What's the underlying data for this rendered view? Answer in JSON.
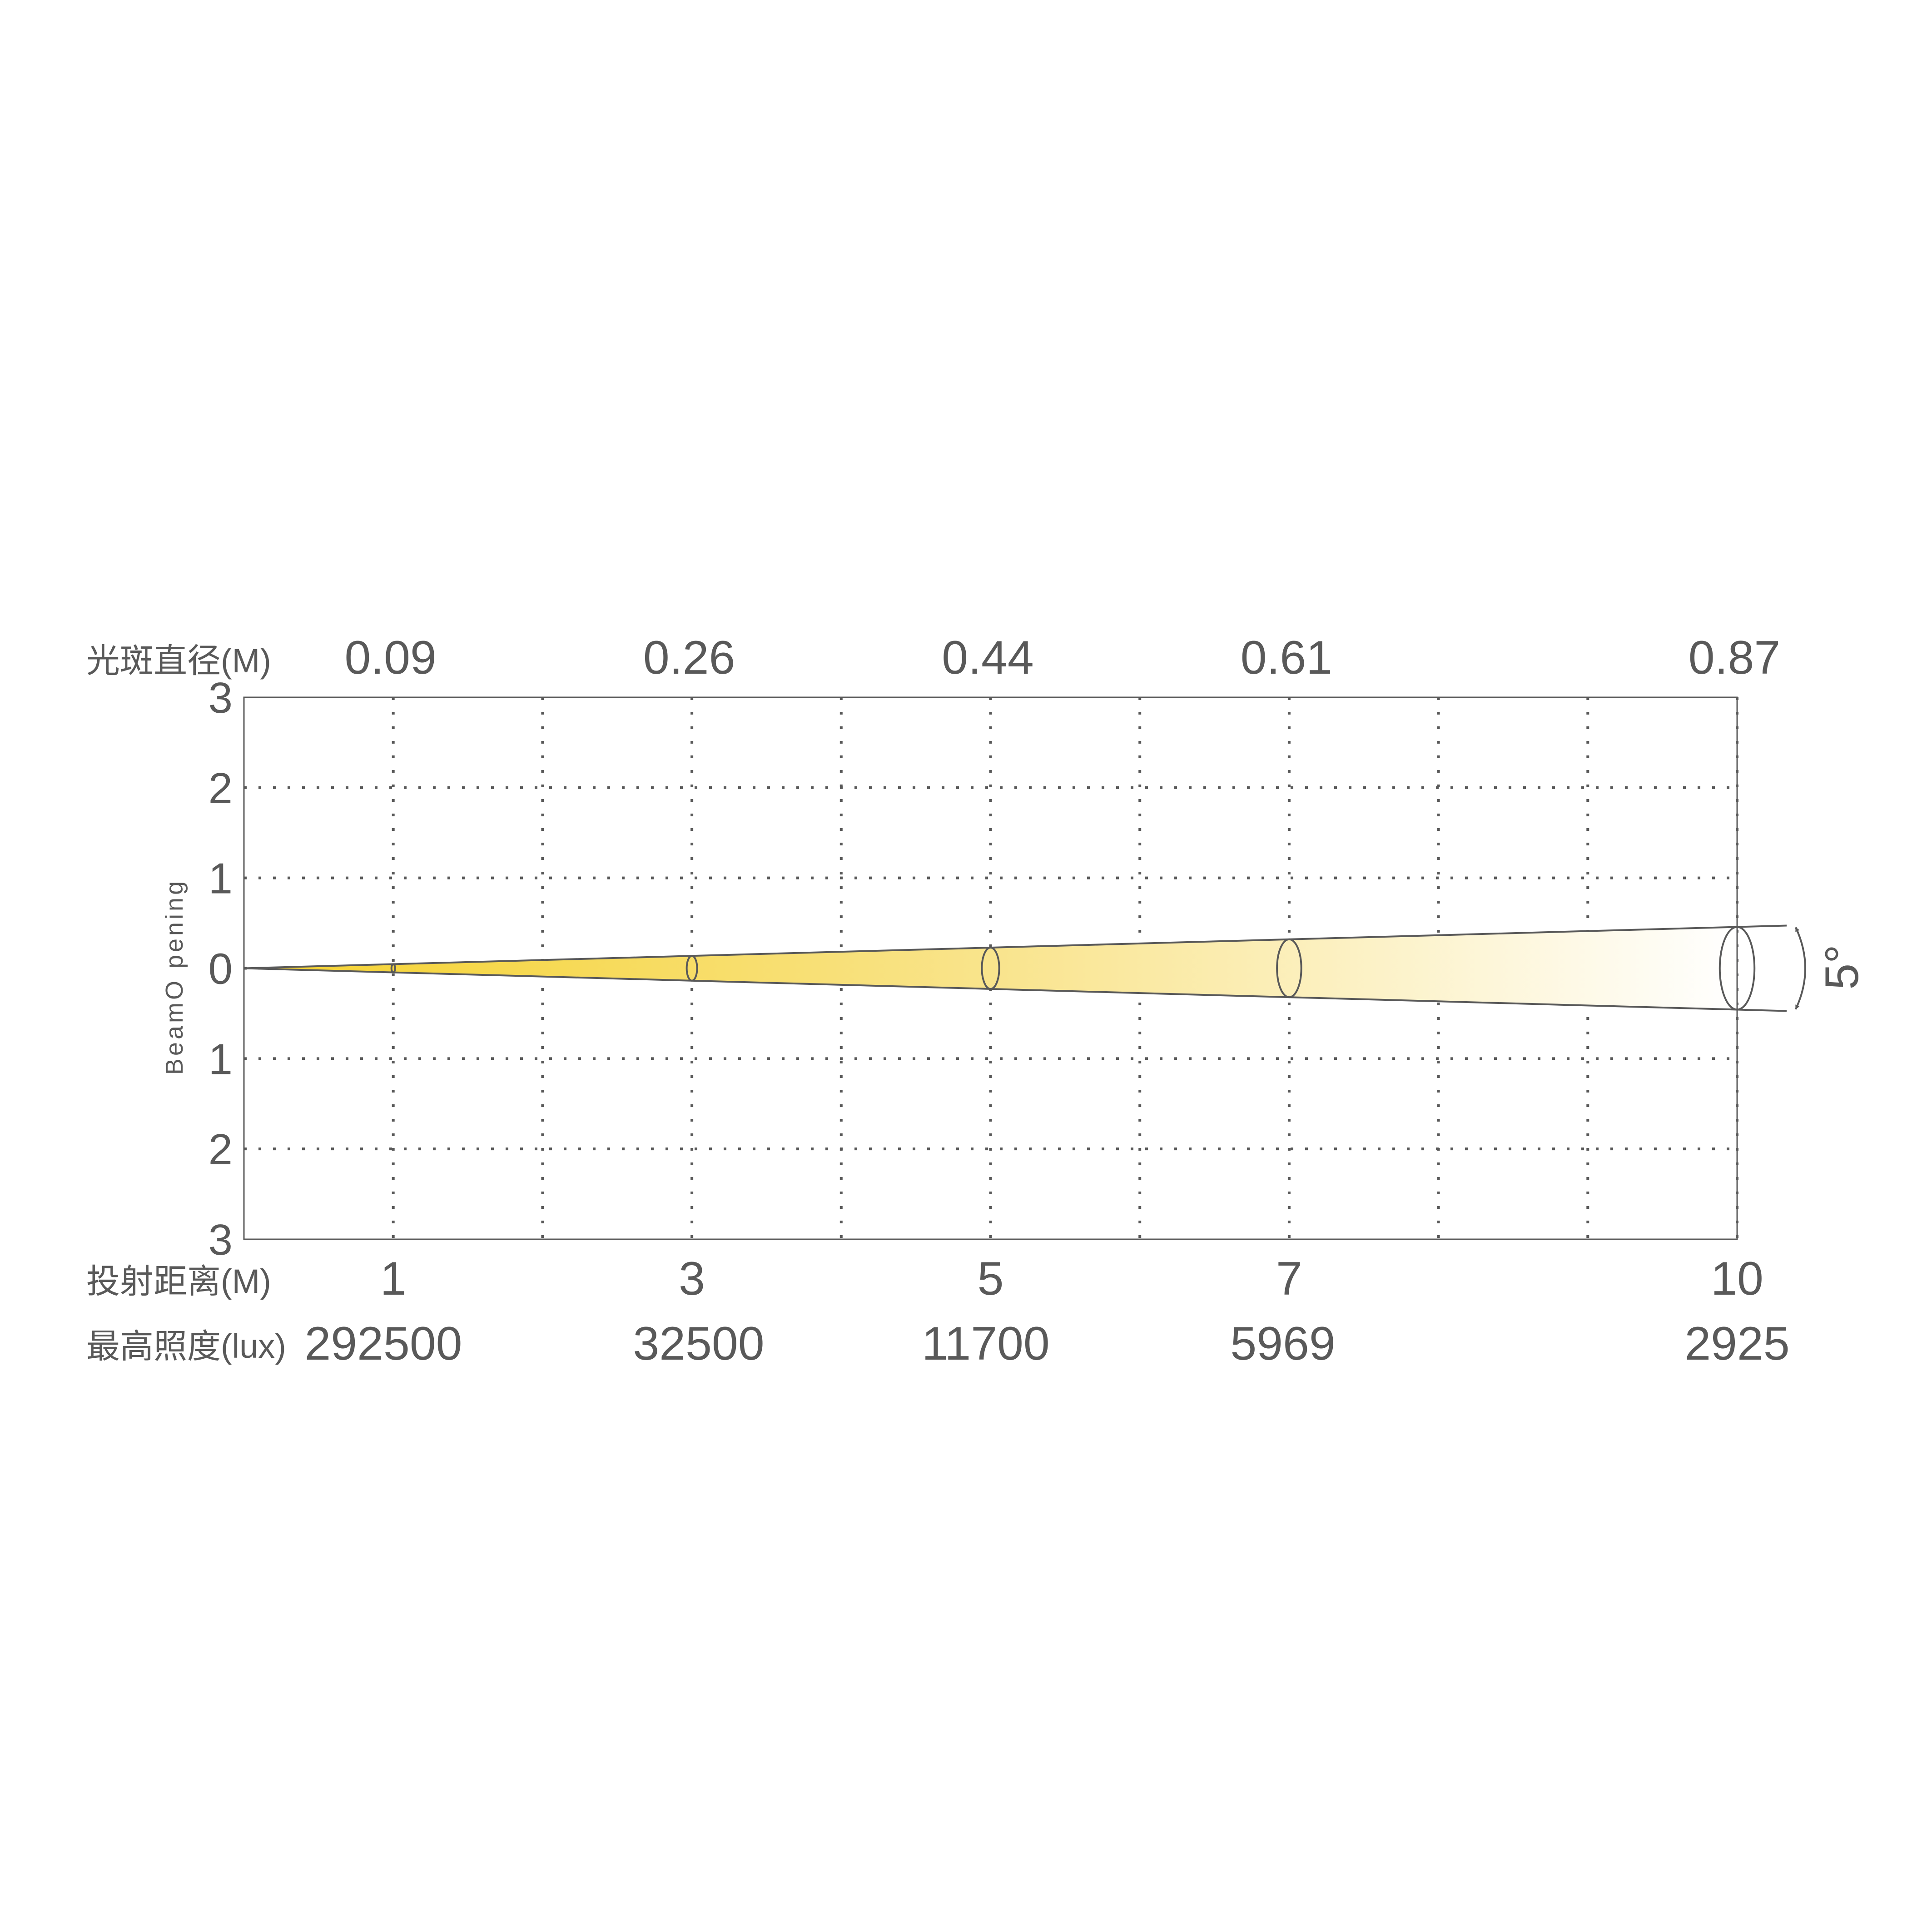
{
  "chart_data": {
    "type": "area",
    "title": "",
    "ylabel": "BeamO pening",
    "beam_angle_label": "5°",
    "beam_angle_deg": 5,
    "xlim": [
      0,
      10
    ],
    "ylim": [
      -3,
      3
    ],
    "grid": true,
    "x_grid": [
      1,
      2,
      3,
      4,
      5,
      6,
      7,
      8,
      9,
      10
    ],
    "y_grid": [
      2,
      1,
      0,
      -1,
      -2
    ],
    "y_ticks": [
      {
        "value": 3,
        "label": "3"
      },
      {
        "value": 2,
        "label": "2"
      },
      {
        "value": 1,
        "label": "1"
      },
      {
        "value": 0,
        "label": "0"
      },
      {
        "value": -1,
        "label": "1"
      },
      {
        "value": -2,
        "label": "2"
      },
      {
        "value": -3,
        "label": "3"
      }
    ],
    "row_labels": {
      "spot_diameter": "光斑直径(M)",
      "distance": "投射距离(M)",
      "illuminance": "最高照度(lux)"
    },
    "points": [
      {
        "distance": 1,
        "distance_label": "1",
        "spot_diameter": "0.09",
        "illuminance": "292500"
      },
      {
        "distance": 3,
        "distance_label": "3",
        "spot_diameter": "0.26",
        "illuminance": "32500"
      },
      {
        "distance": 5,
        "distance_label": "5",
        "spot_diameter": "0.44",
        "illuminance": "11700"
      },
      {
        "distance": 7,
        "distance_label": "7",
        "spot_diameter": "0.61",
        "illuminance": "5969"
      },
      {
        "distance": 10,
        "distance_label": "10",
        "spot_diameter": "0.87",
        "illuminance": "2925"
      }
    ],
    "colors": {
      "beam_start": "#f5d22e",
      "beam_mid": "#f9e48c",
      "beam_end": "#ffffff",
      "line": "#595959",
      "text": "#595959"
    }
  }
}
